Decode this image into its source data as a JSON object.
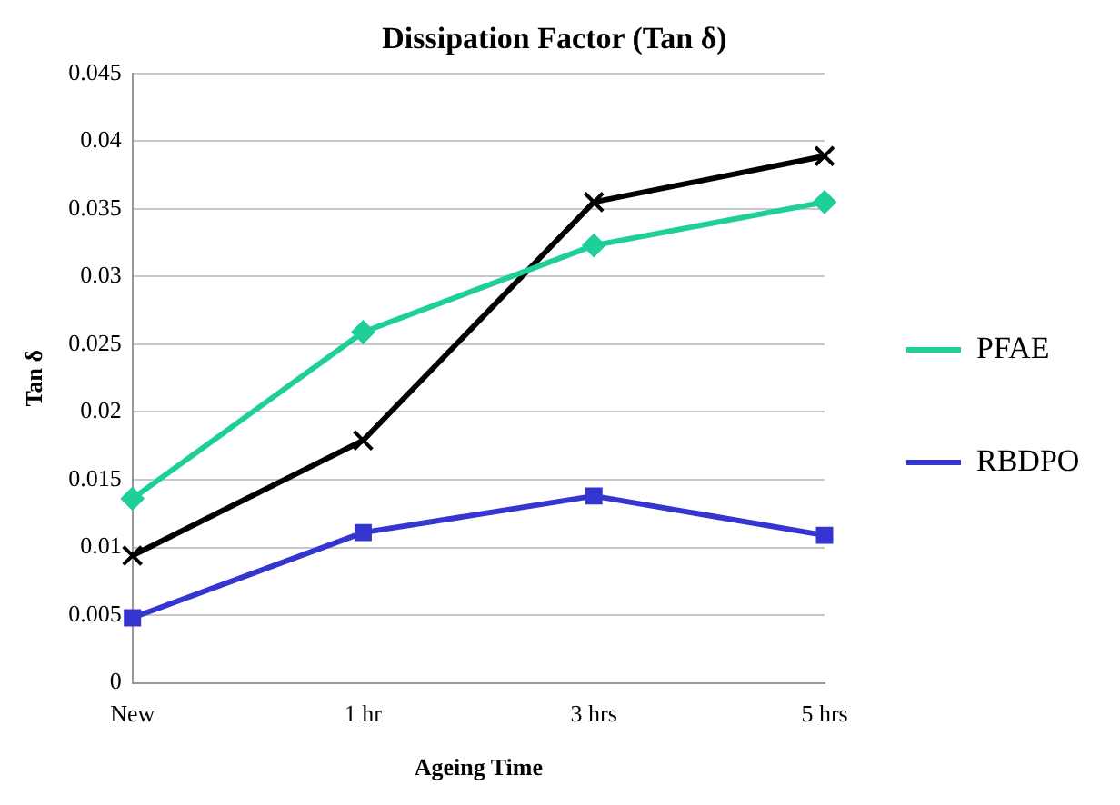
{
  "chart_data": {
    "type": "line",
    "title": "Dissipation Factor (Tan δ)",
    "xlabel": "Ageing Time",
    "ylabel": "Tan δ",
    "categories": [
      "New",
      "1 hr",
      "3 hrs",
      "5 hrs"
    ],
    "series": [
      {
        "name": "PFAE",
        "color": "#1fcf9a",
        "marker": "diamond",
        "values": [
          0.0136,
          0.0259,
          0.0323,
          0.0355
        ]
      },
      {
        "name": "RBDPO",
        "color": "#3535d0",
        "marker": "square",
        "values": [
          0.0048,
          0.0111,
          0.0138,
          0.0109
        ]
      },
      {
        "color": "#000000",
        "marker": "cross",
        "values": [
          0.0094,
          0.0179,
          0.0355,
          0.0389
        ]
      }
    ],
    "ylim": [
      0,
      0.045
    ],
    "yticks": [
      0,
      0.005,
      0.01,
      0.015,
      0.02,
      0.025,
      0.03,
      0.035,
      0.04,
      0.045
    ],
    "grid": "y",
    "legend": "right"
  }
}
